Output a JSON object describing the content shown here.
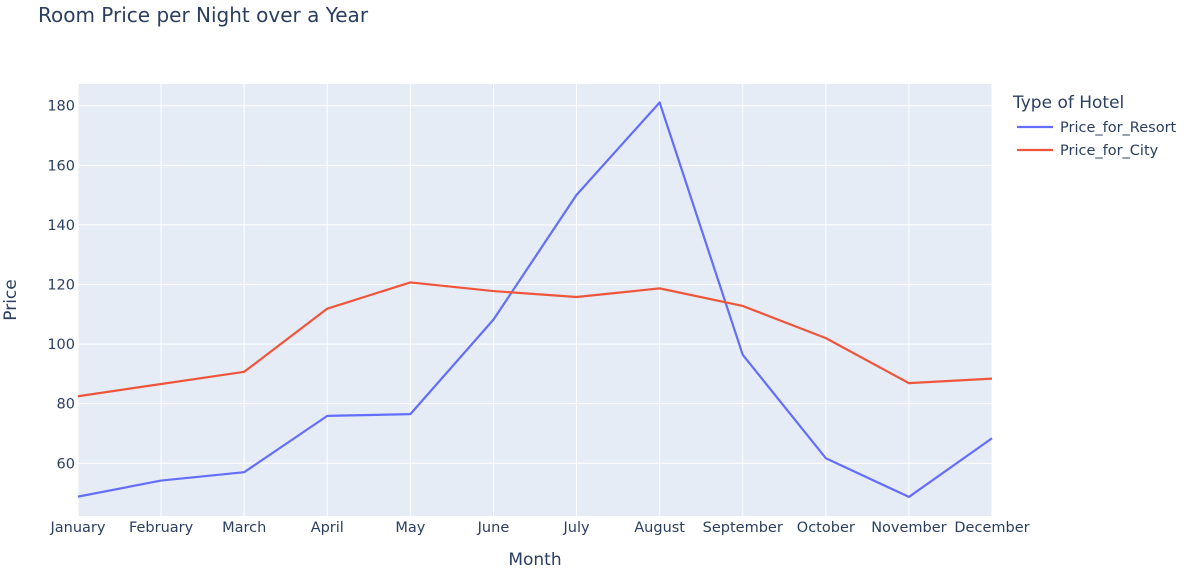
{
  "chart_data": {
    "type": "line",
    "title": "Room Price per Night over a Year",
    "xlabel": "Month",
    "ylabel": "Price",
    "categories": [
      "January",
      "February",
      "March",
      "April",
      "May",
      "June",
      "July",
      "August",
      "September",
      "October",
      "November",
      "December"
    ],
    "series": [
      {
        "name": "Price_for_Resort",
        "color": "#636efa",
        "values": [
          48.8,
          54.2,
          57.0,
          75.9,
          76.5,
          108.2,
          150.1,
          181.1,
          96.4,
          61.7,
          48.7,
          68.4
        ]
      },
      {
        "name": "Price_for_City",
        "color": "#ef553b",
        "values": [
          82.5,
          86.6,
          90.7,
          111.9,
          120.7,
          117.8,
          115.8,
          118.7,
          112.8,
          102.0,
          86.9,
          88.4
        ]
      }
    ],
    "ylim": [
      42.3,
      187.3
    ],
    "yticks": [
      60,
      80,
      100,
      120,
      140,
      160,
      180
    ],
    "grid": true,
    "legend": {
      "title": "Type of Hotel",
      "position": "top-right, outside plot"
    },
    "plot_background": "#e5ecf6",
    "grid_color": "#ffffff",
    "text_color": "#2a3f5f"
  }
}
